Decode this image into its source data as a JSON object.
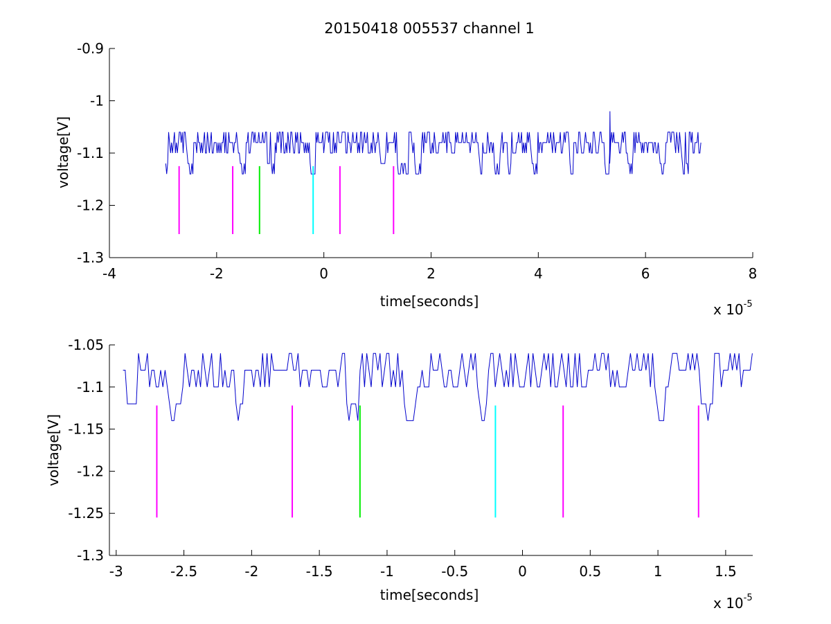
{
  "colors": {
    "background": "#ffffff",
    "axes": "#000000",
    "signal": "#0000cc",
    "marker_magenta": "#ff00ff",
    "marker_green": "#00ee00",
    "marker_cyan": "#00ffff"
  },
  "chart_data": [
    {
      "type": "line",
      "title": "20150418 005537 channel 1",
      "xlabel": "time[seconds]",
      "ylabel": "voltage[V]",
      "x_exponent": {
        "base": "x 10",
        "power": "-5"
      },
      "xlim": [
        -4,
        8
      ],
      "ylim": [
        -1.3,
        -0.9
      ],
      "xticks": [
        -4,
        -2,
        0,
        2,
        4,
        6,
        8
      ],
      "xtick_labels": [
        "-4",
        "-2",
        "0",
        "2",
        "4",
        "6",
        "8"
      ],
      "yticks": [
        -1.3,
        -1.2,
        -1.1,
        -1.0,
        -0.9
      ],
      "ytick_labels": [
        "-1.3",
        "-1.2",
        "-1.1",
        "-1",
        "-0.9"
      ],
      "signal": {
        "x_range": [
          -2.95,
          7.05
        ],
        "baseline": -1.1,
        "levels": [
          -1.14,
          -1.12,
          -1.1,
          -1.08,
          -1.06
        ],
        "spike": {
          "x": 5.33,
          "y": -1.02
        }
      },
      "markers": [
        {
          "x": -2.7,
          "y_range": [
            -1.255,
            -1.125
          ],
          "color": "magenta"
        },
        {
          "x": -1.7,
          "y_range": [
            -1.255,
            -1.125
          ],
          "color": "magenta"
        },
        {
          "x": -1.2,
          "y_range": [
            -1.255,
            -1.125
          ],
          "color": "green"
        },
        {
          "x": -0.2,
          "y_range": [
            -1.255,
            -1.125
          ],
          "color": "cyan"
        },
        {
          "x": 0.3,
          "y_range": [
            -1.255,
            -1.125
          ],
          "color": "magenta"
        },
        {
          "x": 1.3,
          "y_range": [
            -1.255,
            -1.125
          ],
          "color": "magenta"
        }
      ],
      "grid": false,
      "legend": "none"
    },
    {
      "type": "line",
      "title": "",
      "xlabel": "time[seconds]",
      "ylabel": "voltage[V]",
      "x_exponent": {
        "base": "x 10",
        "power": "-5"
      },
      "xlim": [
        -3.05,
        1.7
      ],
      "ylim": [
        -1.3,
        -1.05
      ],
      "xticks": [
        -3,
        -2.5,
        -2,
        -1.5,
        -1,
        -0.5,
        0,
        0.5,
        1,
        1.5
      ],
      "xtick_labels": [
        "-3",
        "-2.5",
        "-2",
        "-1.5",
        "-1",
        "-0.5",
        "0",
        "0.5",
        "1",
        "1.5"
      ],
      "yticks": [
        -1.3,
        -1.25,
        -1.2,
        -1.15,
        -1.1,
        -1.05
      ],
      "ytick_labels": [
        "-1.3",
        "-1.25",
        "-1.2",
        "-1.15",
        "-1.1",
        "-1.05"
      ],
      "signal": {
        "x_range": [
          -2.95,
          1.7
        ],
        "baseline": -1.1,
        "levels": [
          -1.14,
          -1.12,
          -1.1,
          -1.08,
          -1.06
        ]
      },
      "markers": [
        {
          "x": -2.7,
          "y_range": [
            -1.255,
            -1.122
          ],
          "color": "magenta"
        },
        {
          "x": -1.7,
          "y_range": [
            -1.255,
            -1.122
          ],
          "color": "magenta"
        },
        {
          "x": -1.2,
          "y_range": [
            -1.255,
            -1.122
          ],
          "color": "green"
        },
        {
          "x": -0.2,
          "y_range": [
            -1.255,
            -1.122
          ],
          "color": "cyan"
        },
        {
          "x": 0.3,
          "y_range": [
            -1.255,
            -1.122
          ],
          "color": "magenta"
        },
        {
          "x": 1.3,
          "y_range": [
            -1.255,
            -1.122
          ],
          "color": "magenta"
        }
      ],
      "grid": false,
      "legend": "none"
    }
  ]
}
